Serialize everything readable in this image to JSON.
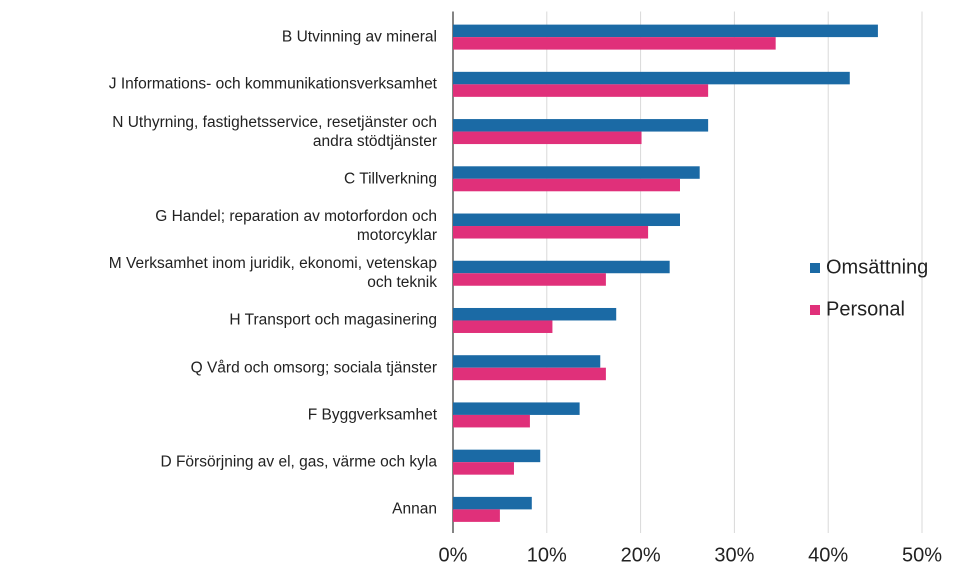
{
  "chart_data": {
    "type": "barh",
    "categories": [
      "B Utvinning av mineral",
      "J Informations- och kommunikationsverksamhet",
      "N Uthyrning, fastighetsservice, resetjänster och\nandra stödtjänster",
      "C Tillverkning",
      "G Handel; reparation av motorfordon och\nmotorcyklar",
      "M Verksamhet inom juridik, ekonomi, vetenskap\noch teknik",
      "H Transport och magasinering",
      "Q Vård och omsorg; sociala tjänster",
      "F Byggverksamhet",
      "D Försörjning av el, gas, värme och kyla",
      "Annan"
    ],
    "series": [
      {
        "name": "Omsättning",
        "color": "#1b6aa5",
        "values": [
          45.3,
          42.3,
          27.2,
          26.3,
          24.2,
          23.1,
          17.4,
          15.7,
          13.5,
          9.3,
          8.4
        ]
      },
      {
        "name": "Personal",
        "color": "#e0307a",
        "values": [
          34.4,
          27.2,
          20.1,
          24.2,
          20.8,
          16.3,
          10.6,
          16.3,
          8.2,
          6.5,
          5
        ]
      }
    ],
    "xlim": [
      0,
      50
    ],
    "xticks": [
      {
        "value": 0,
        "label": "0%"
      },
      {
        "value": 10,
        "label": "10%"
      },
      {
        "value": 20,
        "label": "20%"
      },
      {
        "value": 30,
        "label": "30%"
      },
      {
        "value": 40,
        "label": "40%"
      },
      {
        "value": 50,
        "label": "50%"
      }
    ],
    "grid": true,
    "legend": "right"
  }
}
